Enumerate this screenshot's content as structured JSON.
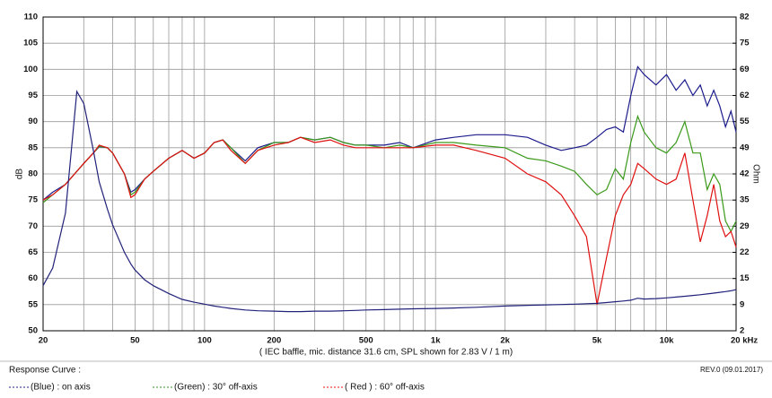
{
  "chart_data": {
    "type": "line",
    "x_label": "( IEC baffle, mic. distance 31.6 cm, SPL shown for 2.83 V / 1 m)",
    "y_label": "dB",
    "y2_label": "Ohm",
    "legend_title": "Response Curve :",
    "revision": "REV.0 (09.01.2017)",
    "log_x": true,
    "grid": true,
    "legend": "bottom",
    "xlim": [
      20,
      20000
    ],
    "xticks": [
      20,
      50,
      100,
      200,
      500,
      {
        "value": 1000,
        "label": "1k"
      },
      {
        "value": 2000,
        "label": "2k"
      },
      {
        "value": 5000,
        "label": "5k"
      },
      {
        "value": 10000,
        "label": "10k"
      },
      {
        "value": 20000,
        "label": "20 kHz"
      }
    ],
    "xminor_ticks": [
      30,
      40,
      60,
      70,
      80,
      90,
      300,
      400,
      600,
      700,
      800,
      900,
      3000,
      4000,
      6000,
      7000,
      8000,
      9000
    ],
    "ylim": [
      50,
      110
    ],
    "yticks": [
      50,
      55,
      60,
      65,
      70,
      75,
      80,
      85,
      90,
      95,
      100,
      105,
      110
    ],
    "y2lim": [
      2,
      82
    ],
    "y2ticks": [
      2,
      {
        "value": 8.67,
        "label": "9"
      },
      {
        "value": 15.33,
        "label": "15"
      },
      22,
      {
        "value": 28.67,
        "label": "29"
      },
      {
        "value": 35.33,
        "label": "35"
      },
      42,
      {
        "value": 48.67,
        "label": "49"
      },
      {
        "value": 55.33,
        "label": "55"
      },
      62,
      {
        "value": 68.67,
        "label": "69"
      },
      {
        "value": 75.33,
        "label": "75"
      },
      82
    ],
    "x": [
      20,
      22,
      25,
      28,
      30,
      33,
      35,
      38,
      40,
      45,
      48,
      50,
      55,
      60,
      70,
      80,
      90,
      100,
      110,
      120,
      130,
      150,
      170,
      200,
      230,
      260,
      300,
      350,
      400,
      450,
      500,
      600,
      700,
      800,
      1000,
      1200,
      1500,
      2000,
      2500,
      3000,
      3500,
      4000,
      4500,
      5000,
      5500,
      6000,
      6500,
      7000,
      7500,
      8000,
      9000,
      10000,
      11000,
      12000,
      13000,
      14000,
      15000,
      16000,
      17000,
      18000,
      19000,
      20000
    ],
    "series": [
      {
        "name": "(Blue) : on axis",
        "color": "#1c1c8c",
        "values": [
          75,
          76.5,
          78,
          80.5,
          82,
          84,
          85.2,
          85,
          84,
          80,
          76.5,
          77,
          79,
          80.5,
          83,
          84.5,
          83,
          84,
          86,
          86.5,
          85,
          82.5,
          85,
          86,
          86,
          87,
          86.5,
          87,
          86,
          85.5,
          85.5,
          85.5,
          86,
          85,
          86.5,
          87,
          87.5,
          87.5,
          87,
          85.5,
          84.5,
          85,
          85.5,
          87,
          88.5,
          89,
          88,
          95,
          100.5,
          99,
          97,
          99,
          96,
          98,
          95,
          97,
          93,
          96,
          93,
          89,
          92,
          88
        ]
      },
      {
        "name": "(Green) : 30° off-axis",
        "color": "#3a9a1a",
        "values": [
          74.5,
          76,
          78,
          80.5,
          82,
          84,
          85.3,
          85,
          84,
          80,
          76,
          76.5,
          79,
          80.5,
          83,
          84.5,
          83,
          84,
          86,
          86.5,
          85,
          82,
          84.5,
          86,
          86,
          87,
          86.5,
          87,
          86,
          85.5,
          85.5,
          85,
          85.5,
          85,
          86,
          86,
          85.5,
          85,
          83,
          82.5,
          81.5,
          80.5,
          78,
          76,
          77,
          81,
          79,
          86,
          91,
          88,
          85,
          84,
          86,
          90,
          84,
          84,
          77,
          80,
          78,
          71,
          69,
          71
        ]
      },
      {
        "name": "( Red ) : 60° off-axis",
        "color": "#e01010",
        "values": [
          75,
          76,
          78,
          80.5,
          82,
          84,
          85.5,
          85,
          84,
          80,
          75.5,
          76,
          79,
          80.5,
          83,
          84.5,
          83,
          84,
          86,
          86.5,
          84.5,
          82,
          84.5,
          85.5,
          86,
          87,
          86,
          86.5,
          85.5,
          85,
          85,
          85,
          85,
          85,
          85.5,
          85.5,
          84.5,
          83,
          80,
          78.5,
          76,
          72,
          68,
          55,
          64,
          72,
          76,
          78,
          82,
          81,
          79,
          78,
          79,
          84,
          75,
          67,
          72,
          78,
          71,
          68,
          69,
          66
        ]
      },
      {
        "axis": "y2",
        "color": "#22227a",
        "values": [
          13.5,
          18,
          32,
          63,
          60,
          48,
          40,
          33,
          29,
          22,
          19,
          17.5,
          15,
          13.5,
          11.5,
          10,
          9.3,
          8.8,
          8.3,
          8,
          7.7,
          7.3,
          7.1,
          7,
          6.9,
          6.9,
          7,
          7,
          7.1,
          7.2,
          7.3,
          7.4,
          7.5,
          7.6,
          7.7,
          7.8,
          8,
          8.3,
          8.5,
          8.6,
          8.7,
          8.8,
          8.9,
          9,
          9.2,
          9.4,
          9.6,
          9.8,
          10.3,
          10.1,
          10.2,
          10.4,
          10.6,
          10.8,
          11,
          11.2,
          11.4,
          11.6,
          11.8,
          12,
          12.2,
          12.5
        ]
      }
    ]
  }
}
